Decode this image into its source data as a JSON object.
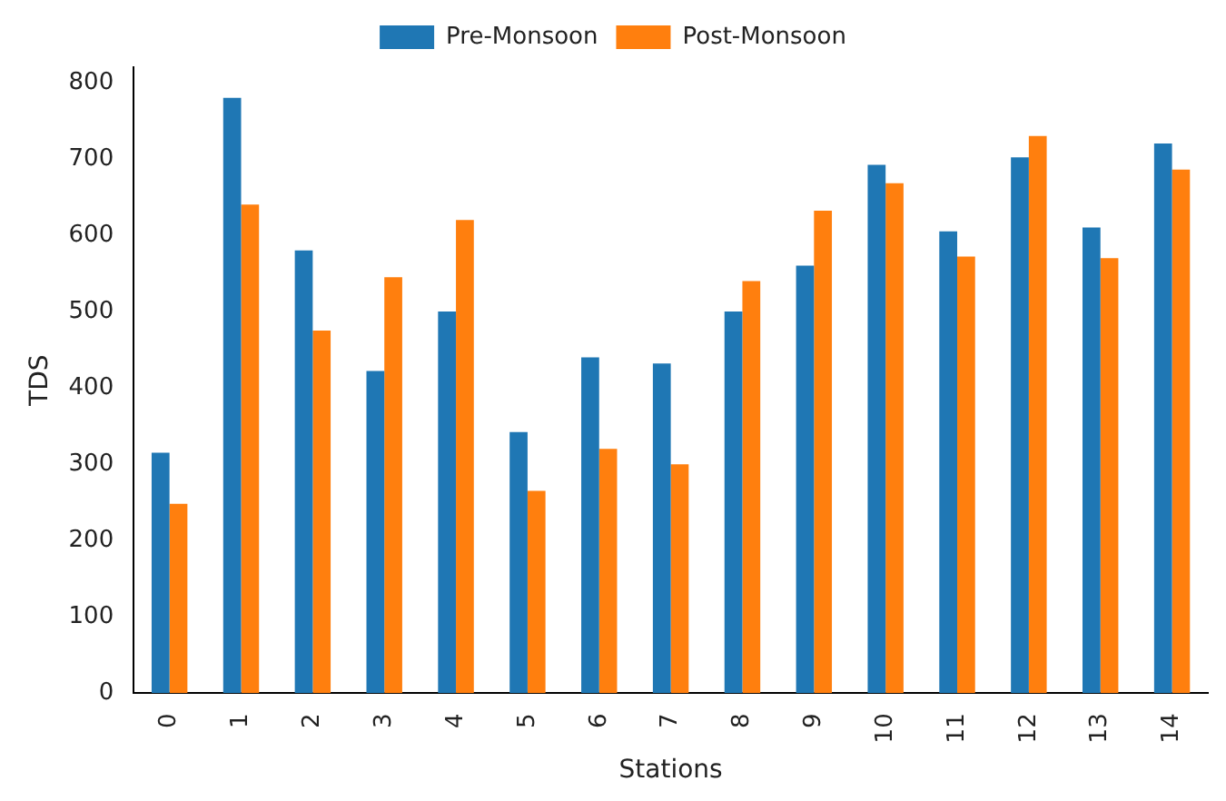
{
  "chart_data": {
    "type": "bar",
    "xlabel": "Stations",
    "ylabel": "TDS",
    "categories": [
      "0",
      "1",
      "2",
      "3",
      "4",
      "5",
      "6",
      "7",
      "8",
      "9",
      "10",
      "11",
      "12",
      "13",
      "14"
    ],
    "series": [
      {
        "name": "Pre-Monsoon",
        "color": "#1f77b4",
        "values": [
          315,
          780,
          580,
          422,
          500,
          342,
          440,
          432,
          500,
          560,
          692,
          605,
          702,
          610,
          720
        ]
      },
      {
        "name": "Post-Monsoon",
        "color": "#ff7f0e",
        "values": [
          248,
          640,
          475,
          545,
          620,
          265,
          320,
          300,
          540,
          632,
          668,
          572,
          730,
          570,
          686
        ]
      }
    ],
    "ylim": [
      0,
      820
    ],
    "yticks": [
      0,
      100,
      200,
      300,
      400,
      500,
      600,
      700,
      800
    ],
    "grid": false,
    "legend": "top"
  }
}
